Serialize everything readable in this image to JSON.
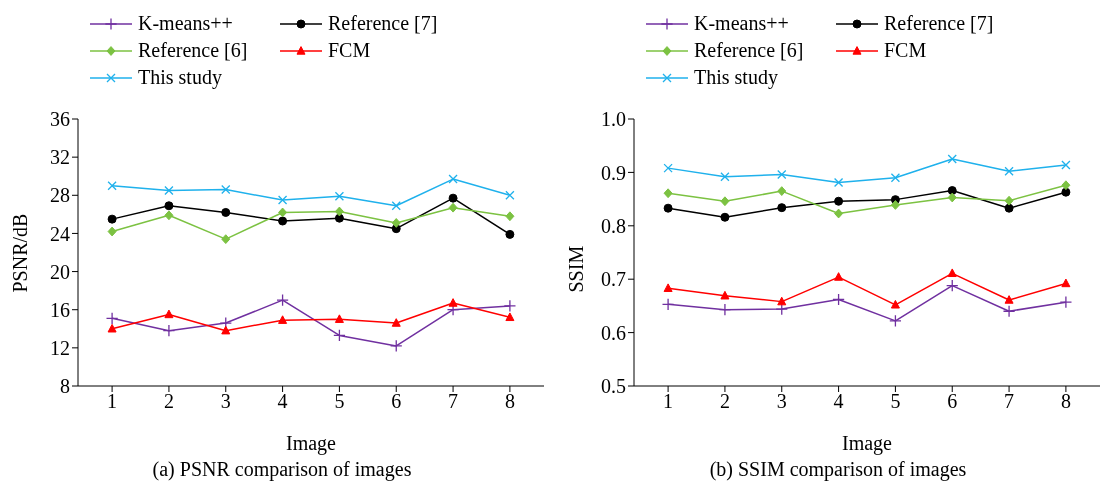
{
  "chart_data": [
    {
      "type": "line",
      "title": "(a) PSNR comparison of images",
      "xlabel": "Image",
      "ylabel": "PSNR/dB",
      "categories": [
        "1",
        "2",
        "3",
        "4",
        "5",
        "6",
        "7",
        "8"
      ],
      "ylim": [
        8,
        36
      ],
      "yticks": [
        8,
        12,
        16,
        20,
        24,
        28,
        32,
        36
      ],
      "grid": false,
      "legend": "top",
      "series": [
        {
          "name": "K-means++",
          "color": "#7030a0",
          "marker": "plus",
          "values": [
            15.1,
            13.8,
            14.6,
            17.0,
            13.3,
            12.2,
            16.0,
            16.4
          ]
        },
        {
          "name": "Reference [7]",
          "color": "#000000",
          "marker": "circle",
          "values": [
            25.5,
            26.9,
            26.2,
            25.3,
            25.6,
            24.5,
            27.7,
            23.9
          ]
        },
        {
          "name": "Reference [6]",
          "color": "#7cc242",
          "marker": "diamond",
          "values": [
            24.2,
            25.9,
            23.4,
            26.2,
            26.3,
            25.1,
            26.7,
            25.8
          ]
        },
        {
          "name": "FCM",
          "color": "#ff0000",
          "marker": "triangle",
          "values": [
            14.0,
            15.5,
            13.8,
            14.9,
            15.0,
            14.6,
            16.7,
            15.2
          ]
        },
        {
          "name": "This study",
          "color": "#1fb1ec",
          "marker": "cross",
          "values": [
            29.0,
            28.5,
            28.6,
            27.5,
            27.9,
            26.9,
            29.7,
            28.0
          ]
        }
      ]
    },
    {
      "type": "line",
      "title": "(b) SSIM comparison of images",
      "xlabel": "Image",
      "ylabel": "SSIM",
      "categories": [
        "1",
        "2",
        "3",
        "4",
        "5",
        "6",
        "7",
        "8"
      ],
      "ylim": [
        0.5,
        1.0
      ],
      "yticks": [
        {
          "value": 0.5,
          "label": "0.5"
        },
        {
          "value": 0.6,
          "label": "0.6"
        },
        {
          "value": 0.7,
          "label": "0.7"
        },
        {
          "value": 0.8,
          "label": "0.8"
        },
        {
          "value": 0.9,
          "label": "0.9"
        },
        {
          "value": 1.0,
          "label": "1.0"
        }
      ],
      "grid": false,
      "legend": "top",
      "series": [
        {
          "name": "K-means++",
          "color": "#7030a0",
          "marker": "plus",
          "values": [
            0.653,
            0.643,
            0.644,
            0.662,
            0.622,
            0.688,
            0.64,
            0.657
          ]
        },
        {
          "name": "Reference [7]",
          "color": "#000000",
          "marker": "circle",
          "values": [
            0.833,
            0.816,
            0.834,
            0.846,
            0.849,
            0.866,
            0.833,
            0.863
          ]
        },
        {
          "name": "Reference [6]",
          "color": "#7cc242",
          "marker": "diamond",
          "values": [
            0.861,
            0.846,
            0.865,
            0.823,
            0.839,
            0.853,
            0.847,
            0.876
          ]
        },
        {
          "name": "FCM",
          "color": "#ff0000",
          "marker": "triangle",
          "values": [
            0.683,
            0.669,
            0.658,
            0.704,
            0.652,
            0.711,
            0.661,
            0.692
          ]
        },
        {
          "name": "This study",
          "color": "#1fb1ec",
          "marker": "cross",
          "values": [
            0.908,
            0.892,
            0.896,
            0.881,
            0.89,
            0.925,
            0.902,
            0.914
          ]
        }
      ]
    }
  ]
}
